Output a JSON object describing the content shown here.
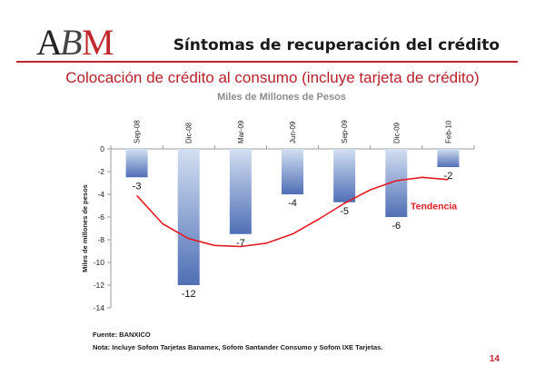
{
  "header": {
    "logo_text": "ABM",
    "title": "Síntomas de recuperación del crédito"
  },
  "chart_title": "Colocación de crédito al consumo (incluye tarjeta de crédito)",
  "chart_units": "Miles de Millones de Pesos",
  "colors": {
    "accent": "#c0272d",
    "bar_top": "#4f6fb5",
    "bar_bottom": "#d3dff2",
    "trend": "#e31b23"
  },
  "chart_data": {
    "type": "bar",
    "categories": [
      "Sep-08",
      "Dic-08",
      "Mar-09",
      "Jun-09",
      "Sep-09",
      "Dic-09",
      "Feb-10"
    ],
    "values": [
      -2.5,
      -12,
      -7.5,
      -4,
      -4.7,
      -6,
      -1.6
    ],
    "value_labels": [
      "-3",
      "-12",
      "-7",
      "-4",
      "-5",
      "-6",
      "-2"
    ],
    "yticks": [
      0,
      -2,
      -4,
      -6,
      -8,
      -10,
      -12,
      -14
    ],
    "ylim": [
      -14,
      0
    ],
    "ylabel": "Miles de millones de pesos",
    "trend": {
      "name": "Tendencia",
      "x": [
        0,
        0.5,
        1,
        1.5,
        2,
        2.5,
        3,
        3.5,
        4,
        4.5,
        5,
        5.5,
        6
      ],
      "y": [
        -4.1,
        -6.6,
        -7.9,
        -8.5,
        -8.6,
        -8.3,
        -7.5,
        -6.2,
        -4.8,
        -3.6,
        -2.8,
        -2.5,
        -2.7
      ]
    },
    "legend": "inline, right of trend line"
  },
  "footer": {
    "source": "Fuente:  BANXICO",
    "note": "Nota: Incluye Sofom Tarjetas Banamex, Sofom Santander Consumo y Sofom IXE Tarjetas."
  },
  "page_number": "14"
}
